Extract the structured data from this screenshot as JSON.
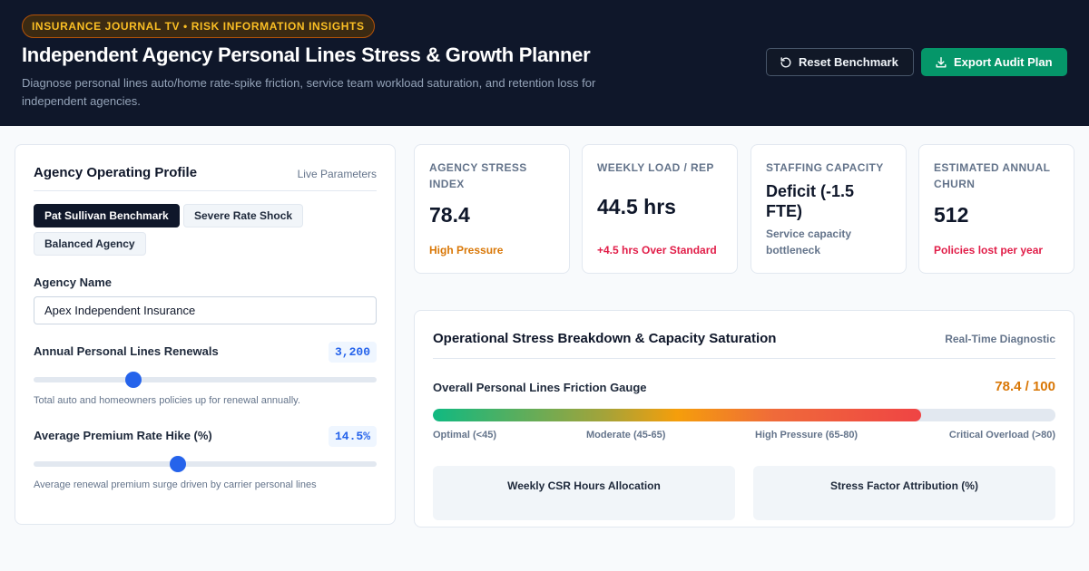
{
  "header": {
    "tagline": "INSURANCE JOURNAL TV • RISK INFORMATION INSIGHTS",
    "title": "Independent Agency Personal Lines Stress & Growth Planner",
    "subtitle": "Diagnose personal lines auto/home rate-spike friction, service team workload saturation, and retention loss for independent agencies.",
    "reset_label": "Reset Benchmark",
    "export_label": "Export Audit Plan",
    "reset_icon": "refresh-icon",
    "export_icon": "download-icon"
  },
  "profile": {
    "title": "Agency Operating Profile",
    "meta": "Live Parameters",
    "presets": [
      {
        "label": "Pat Sullivan Benchmark",
        "active": true
      },
      {
        "label": "Severe Rate Shock",
        "active": false
      },
      {
        "label": "Balanced Agency",
        "active": false
      }
    ],
    "agency_name_label": "Agency Name",
    "agency_name_value": "Apex Independent Insurance",
    "renewals": {
      "label": "Annual Personal Lines Renewals",
      "value": "3,200",
      "slider_fraction": 0.29,
      "help": "Total auto and homeowners policies up for renewal annually."
    },
    "rate_hike": {
      "label": "Average Premium Rate Hike (%)",
      "value": "14.5%",
      "slider_fraction": 0.42,
      "help": "Average renewal premium surge driven by carrier personal lines"
    }
  },
  "kpis": [
    {
      "label": "Agency Stress Index",
      "value": "78.4",
      "foot": "High Pressure",
      "foot_color": "#d97706"
    },
    {
      "label": "Weekly Load / Rep",
      "value": "44.5 hrs",
      "foot": "+4.5 hrs Over Standard",
      "foot_color": "#e11d48"
    },
    {
      "label": "Staffing Capacity",
      "value": "Deficit (-1.5 FTE)",
      "foot": "Service capacity bottleneck",
      "foot_color": "#64748b"
    },
    {
      "label": "Estimated Annual Churn",
      "value": "512",
      "foot": "Policies lost per year",
      "foot_color": "#e11d48"
    }
  ],
  "diagnostic": {
    "title": "Operational Stress Breakdown & Capacity Saturation",
    "meta": "Real-Time Diagnostic",
    "gauge_title": "Overall Personal Lines Friction Gauge",
    "gauge_readout": "78.4 / 100",
    "gauge_fraction": 0.784,
    "zones": [
      "Optimal (<45)",
      "Moderate (45-65)",
      "High Pressure (65-80)",
      "Critical Overload (>80)"
    ],
    "panels": [
      "Weekly CSR Hours Allocation",
      "Stress Factor Attribution (%)"
    ]
  }
}
